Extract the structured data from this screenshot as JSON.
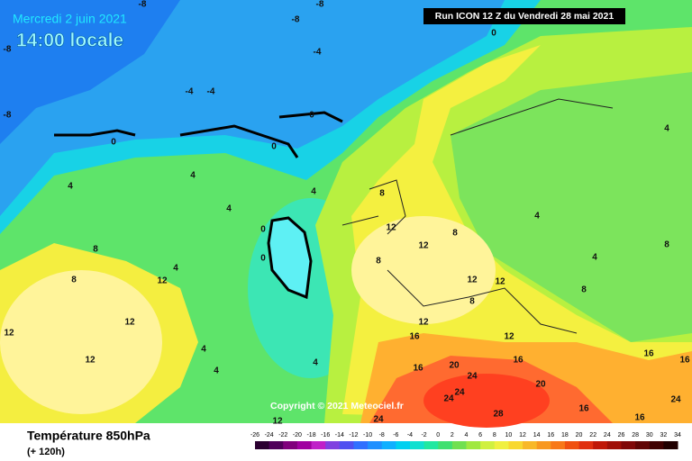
{
  "header": {
    "date": "Mercredi 2 juin 2021",
    "time": "14:00 locale",
    "run": "Run ICON 12 Z du Vendredi 28 mai 2021"
  },
  "copyright": "Copyright © 2021 Meteociel.fr",
  "footer": {
    "title": "Température 850hPa",
    "subtitle": "(+ 120h)"
  },
  "colorbar": {
    "ticks": [
      -26,
      -24,
      -22,
      -20,
      -18,
      -16,
      -14,
      -12,
      -10,
      -8,
      -6,
      -4,
      -2,
      0,
      2,
      4,
      6,
      8,
      10,
      12,
      14,
      16,
      18,
      20,
      22,
      24,
      26,
      28,
      30,
      32,
      34
    ]
  },
  "contour_labels": [
    -8,
    -8,
    -8,
    -8,
    -8,
    0,
    -4,
    -4,
    -4,
    0,
    0,
    0,
    4,
    4,
    4,
    4,
    0,
    0,
    8,
    8,
    4,
    12,
    12,
    12,
    12,
    4,
    4,
    4,
    8,
    12,
    12,
    8,
    8,
    12,
    12,
    8,
    12,
    16,
    12,
    16,
    20,
    24,
    24,
    24,
    28,
    24,
    16,
    16,
    4,
    8,
    4,
    4,
    8,
    16,
    24,
    20,
    16,
    16,
    12
  ]
}
